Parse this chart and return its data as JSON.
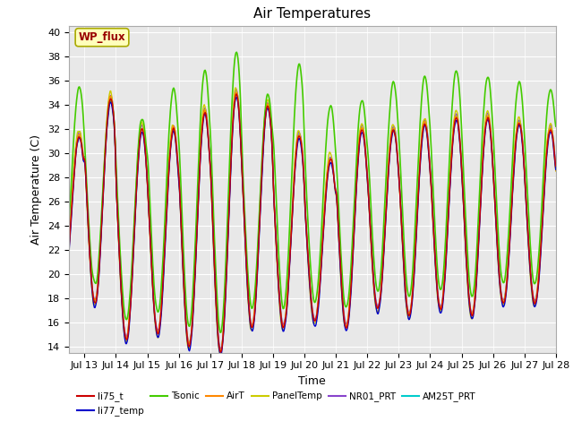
{
  "title": "Air Temperatures",
  "xlabel": "Time",
  "ylabel": "Air Temperature (C)",
  "ylim": [
    13.5,
    40.5
  ],
  "bg_color": "#e8e8e8",
  "legend_items": [
    {
      "label": "li75_t",
      "color": "#cc0000",
      "lw": 1.0
    },
    {
      "label": "li77_temp",
      "color": "#0000cc",
      "lw": 1.0
    },
    {
      "label": "Tsonic",
      "color": "#44cc00",
      "lw": 1.2
    },
    {
      "label": "AirT",
      "color": "#ff8800",
      "lw": 1.0
    },
    {
      "label": "PanelTemp",
      "color": "#cccc00",
      "lw": 1.0
    },
    {
      "label": "NR01_PRT",
      "color": "#8844cc",
      "lw": 1.0
    },
    {
      "label": "AM25T_PRT",
      "color": "#00cccc",
      "lw": 1.0
    }
  ],
  "annotation_text": "WP_flux",
  "tick_label_fontsize": 8,
  "axis_label_fontsize": 9,
  "title_fontsize": 11,
  "x_tick_days": [
    13,
    14,
    15,
    16,
    17,
    18,
    19,
    20,
    21,
    22,
    23,
    24,
    25,
    26,
    27,
    28
  ],
  "day_min_temps": [
    18.5,
    17.5,
    14.5,
    15.0,
    14.0,
    13.5,
    15.5,
    15.5,
    16.0,
    15.5,
    17.0,
    16.5,
    17.0,
    16.5,
    17.5,
    17.5
  ],
  "day_max_temps_main": [
    31.5,
    34.5,
    32.0,
    32.0,
    33.5,
    35.0,
    34.0,
    31.5,
    29.5,
    32.0,
    32.0,
    32.5,
    33.0,
    33.0,
    32.5,
    32.0
  ],
  "day_max_tsonic": [
    35.5,
    34.5,
    33.0,
    35.5,
    37.0,
    38.5,
    35.0,
    37.5,
    34.0,
    34.5,
    36.0,
    36.5,
    37.0,
    36.5,
    36.0,
    35.5
  ]
}
